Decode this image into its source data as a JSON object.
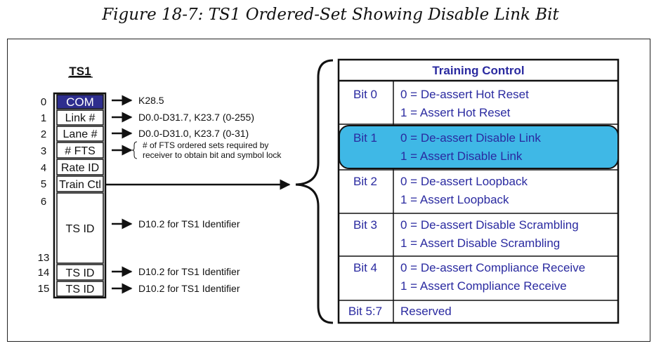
{
  "caption": "Figure 18-7: TS1 Ordered-Set Showing Disable Link Bit",
  "ts1": {
    "title": "TS1",
    "rows": [
      {
        "index": "0",
        "label": "COM",
        "note": "K28.5",
        "highlight": true
      },
      {
        "index": "1",
        "label": "Link #",
        "note": "D0.0-D31.7, K23.7 (0-255)"
      },
      {
        "index": "2",
        "label": "Lane #",
        "note": "D0.0-D31.0, K23.7 (0-31)"
      },
      {
        "index": "3",
        "label": "# FTS",
        "note_lines": [
          "# of FTS ordered sets required by",
          "receiver to obtain bit and symbol lock"
        ]
      },
      {
        "index": "4",
        "label": "Rate ID"
      },
      {
        "index": "5",
        "label": "Train Ctl"
      },
      {
        "index_start": "6",
        "index_end": "13",
        "label": "TS ID",
        "note": "D10.2 for TS1 Identifier"
      },
      {
        "index": "14",
        "label": "TS ID",
        "note": "D10.2 for TS1 Identifier"
      },
      {
        "index": "15",
        "label": "TS ID",
        "note": "D10.2 for TS1 Identifier"
      }
    ]
  },
  "training_control": {
    "title": "Training Control",
    "rows": [
      {
        "bit": "Bit 0",
        "lines": [
          "0 = De-assert Hot Reset",
          "1 = Assert Hot Reset"
        ]
      },
      {
        "bit": "Bit 1",
        "lines": [
          "0 = De-assert Disable Link",
          "1 = Assert Disable Link"
        ],
        "highlight": true
      },
      {
        "bit": "Bit 2",
        "lines": [
          "0 = De-assert Loopback",
          "1 = Assert Loopback"
        ]
      },
      {
        "bit": "Bit 3",
        "lines": [
          "0 = De-assert Disable Scrambling",
          "1 = Assert Disable Scrambling"
        ]
      },
      {
        "bit": "Bit 4",
        "lines": [
          "0 = De-assert Compliance Receive",
          "1 = Assert Compliance Receive"
        ]
      },
      {
        "bit": "Bit 5:7",
        "lines": [
          "Reserved"
        ]
      }
    ]
  },
  "colors": {
    "com_fill": "#2e2e8e",
    "highlight_fill": "#3fb8e6",
    "table_text": "#2a2aa0",
    "line": "#111111"
  }
}
